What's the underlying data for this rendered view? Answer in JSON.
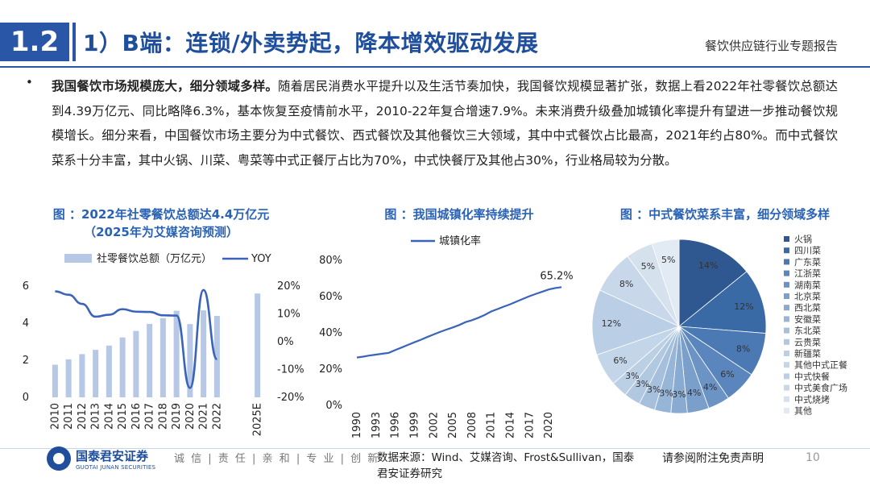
{
  "header": {
    "section_number": "1.2",
    "title": "1）B端：连锁/外卖势起，降本增效驱动发展",
    "report_name": "餐饮供应链行业专题报告"
  },
  "body": {
    "bullet": "•",
    "lead": "我国餐饮市场规模庞大，细分领域多样。",
    "text": "随着居民消费水平提升以及生活节奏加快，我国餐饮规模显著扩张，数据上看2022年社零餐饮总额达到4.39万亿元、同比略降6.3%，基本恢复至疫情前水平，2010-22年复合增速7.9%。未来消费升级叠加城镇化率提升有望进一步推动餐饮规模增长。细分来看，中国餐饮市场主要分为中式餐饮、西式餐饮及其他餐饮三大领域，其中中式餐饮占比最高，2021年约占80%。而中式餐饮菜系十分丰富，其中火锅、川菜、粤菜等中式正餐厅占比为70%，中式快餐厅及其他占30%，行业格局较为分散。"
  },
  "captions": {
    "chart1_line1": "图 ：2022年社零餐饮总额达4.4万亿元",
    "chart1_line2": "（2025年为艾媒咨询预测）",
    "chart2": "图 ：我国城镇化率持续提升",
    "chart3": "图 ：中式餐饮菜系丰富，细分领域多样"
  },
  "chart_data": [
    {
      "type": "bar",
      "legend": [
        "社零餐饮总额（万亿元）",
        "YOY"
      ],
      "categories": [
        "2010",
        "2011",
        "2012",
        "2013",
        "2014",
        "2015",
        "2016",
        "2017",
        "2018",
        "2019",
        "2020",
        "2021",
        "2022",
        "",
        "",
        "2025E"
      ],
      "series": [
        {
          "name": "社零餐饮总额（万亿元）",
          "type": "bar",
          "values": [
            1.76,
            2.05,
            2.33,
            2.56,
            2.79,
            3.23,
            3.58,
            3.96,
            4.27,
            4.67,
            3.95,
            4.69,
            4.39,
            null,
            null,
            5.6
          ]
        },
        {
          "name": "YOY",
          "type": "line",
          "axis": "right",
          "values": [
            18.1,
            16.9,
            13.6,
            9.0,
            9.7,
            11.7,
            10.8,
            10.7,
            9.5,
            9.4,
            -16.6,
            18.6,
            -6.3,
            null,
            null,
            null
          ]
        }
      ],
      "y_left": {
        "ticks": [
          "0",
          "2",
          "4",
          "6"
        ],
        "range": [
          0,
          6
        ]
      },
      "y_right": {
        "ticks": [
          "-20%",
          "-10%",
          "0%",
          "10%",
          "20%"
        ],
        "range": [
          -20,
          20
        ]
      }
    },
    {
      "type": "line",
      "legend": [
        "城镇化率"
      ],
      "x_ticks": [
        "1990",
        "1993",
        "1996",
        "1999",
        "2002",
        "2005",
        "2008",
        "2011",
        "2014",
        "2017",
        "2020"
      ],
      "x_range": [
        1990,
        2022
      ],
      "series": [
        {
          "name": "城镇化率",
          "x": [
            1990,
            1991,
            1992,
            1993,
            1994,
            1995,
            1996,
            1997,
            1998,
            1999,
            2000,
            2001,
            2002,
            2003,
            2004,
            2005,
            2006,
            2007,
            2008,
            2009,
            2010,
            2011,
            2012,
            2013,
            2014,
            2015,
            2016,
            2017,
            2018,
            2019,
            2020,
            2021,
            2022
          ],
          "y": [
            26.4,
            26.9,
            27.5,
            28.0,
            28.5,
            29.0,
            30.5,
            31.9,
            33.4,
            34.8,
            36.2,
            37.7,
            39.1,
            40.5,
            41.8,
            43.0,
            44.3,
            45.9,
            47.0,
            48.3,
            49.9,
            51.8,
            53.1,
            54.5,
            55.8,
            57.3,
            58.8,
            60.2,
            61.5,
            62.7,
            63.9,
            64.7,
            65.2
          ]
        }
      ],
      "y_ticks": [
        "0%",
        "20%",
        "40%",
        "60%",
        "80%"
      ],
      "y_range": [
        0,
        80
      ],
      "last_label": "65.2%"
    },
    {
      "type": "pie",
      "categories": [
        "火锅",
        "四川菜",
        "广东菜",
        "江浙菜",
        "湖南菜",
        "北京菜",
        "西北菜",
        "安徽菜",
        "东北菜",
        "云贵菜",
        "新疆菜",
        "其他中式正餐",
        "中式快餐",
        "中式美食广场",
        "中式烧烤",
        "其他"
      ],
      "values": [
        14,
        12,
        8,
        6,
        4,
        4,
        3,
        3,
        3,
        3,
        3,
        6,
        12,
        8,
        5,
        5
      ],
      "labels": [
        "14%",
        "12%",
        "8%",
        "6%",
        "4%",
        "4%",
        "3%",
        "3%",
        "3%",
        "3%",
        "3%",
        "6%",
        "12%",
        "8%",
        "5%",
        "5%"
      ],
      "colors": [
        "#2f5790",
        "#3a6aa5",
        "#4a79b3",
        "#5a86bd",
        "#6b93c4",
        "#7a9fcb",
        "#89aad1",
        "#97b5d7",
        "#a5bfdc",
        "#b1c8e1",
        "#bcd0e5",
        "#c3d5e9",
        "#bacee5",
        "#c8d8ea",
        "#d6e1ee",
        "#e2eaf3"
      ]
    }
  ],
  "footer": {
    "logo_cn": "国泰君安证券",
    "logo_en": "GUOTAI JUNAN SECURITIES",
    "motto": "诚 信 | 责 任 | 亲 和 | 专 业 | 创 新",
    "source": "数据来源：Wind、艾媒咨询、Frost&Sullivan，国泰君安证券研究",
    "disclaimer": "请参阅附注免责声明",
    "page": "10"
  }
}
